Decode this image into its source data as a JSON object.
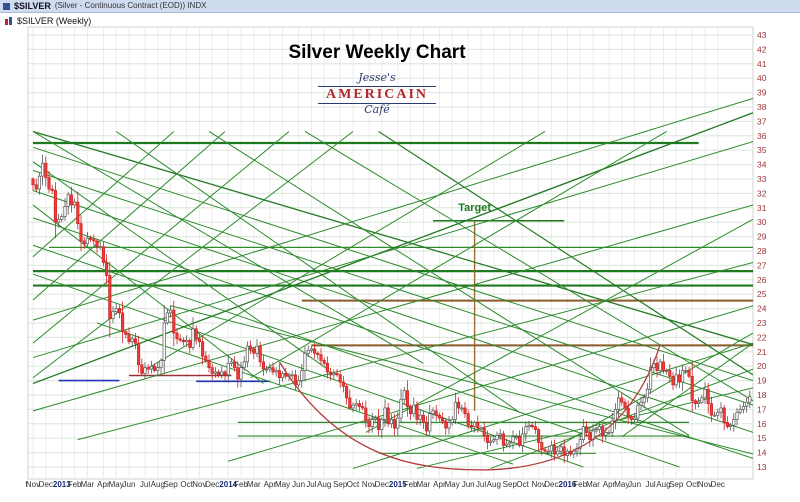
{
  "header": {
    "symbol": "$SILVER",
    "description": "(Silver - Continuous Contract (EOD)) INDX",
    "legend": "$SILVER (Weekly)"
  },
  "logo": {
    "line1": "Jesse's",
    "line2": "AMERICAIN",
    "line3": "Café"
  },
  "chart_data": {
    "type": "candlestick",
    "title": "Silver Weekly Chart",
    "symbol": "$SILVER",
    "timeframe": "Weekly",
    "y_axis_side": "right",
    "ylim": [
      13,
      43
    ],
    "y_tick_step": 1,
    "grid": true,
    "x_labels": [
      {
        "text": "t",
        "week": -2
      },
      {
        "text": "Nov",
        "week": 0
      },
      {
        "text": "Dec",
        "week": 4
      },
      {
        "text": "2013",
        "week": 9,
        "year": true
      },
      {
        "text": "Feb",
        "week": 13
      },
      {
        "text": "Mar",
        "week": 17
      },
      {
        "text": "Apr",
        "week": 22
      },
      {
        "text": "May",
        "week": 26
      },
      {
        "text": "Jun",
        "week": 30
      },
      {
        "text": "Jul",
        "week": 35
      },
      {
        "text": "Aug",
        "week": 39
      },
      {
        "text": "Sep",
        "week": 43
      },
      {
        "text": "Oct",
        "week": 48
      },
      {
        "text": "Nov",
        "week": 52
      },
      {
        "text": "Dec",
        "week": 56
      },
      {
        "text": "2014",
        "week": 61,
        "year": true
      },
      {
        "text": "Feb",
        "week": 65
      },
      {
        "text": "Mar",
        "week": 69
      },
      {
        "text": "Apr",
        "week": 74
      },
      {
        "text": "May",
        "week": 78
      },
      {
        "text": "Jun",
        "week": 83
      },
      {
        "text": "Jul",
        "week": 87
      },
      {
        "text": "Aug",
        "week": 91
      },
      {
        "text": "Sep",
        "week": 96
      },
      {
        "text": "Oct",
        "week": 100
      },
      {
        "text": "Nov",
        "week": 105
      },
      {
        "text": "Dec",
        "week": 109
      },
      {
        "text": "2015",
        "week": 114,
        "year": true
      },
      {
        "text": "Feb",
        "week": 118
      },
      {
        "text": "Mar",
        "week": 122
      },
      {
        "text": "Apr",
        "week": 127
      },
      {
        "text": "May",
        "week": 131
      },
      {
        "text": "Jun",
        "week": 136
      },
      {
        "text": "Jul",
        "week": 140
      },
      {
        "text": "Aug",
        "week": 144
      },
      {
        "text": "Sep",
        "week": 149
      },
      {
        "text": "Oct",
        "week": 153
      },
      {
        "text": "Nov",
        "week": 158
      },
      {
        "text": "Dec",
        "week": 162
      },
      {
        "text": "2016",
        "week": 167,
        "year": true
      },
      {
        "text": "Feb",
        "week": 171
      },
      {
        "text": "Mar",
        "week": 175
      },
      {
        "text": "Apr",
        "week": 180
      },
      {
        "text": "May",
        "week": 184
      },
      {
        "text": "Jun",
        "week": 188
      },
      {
        "text": "Jul",
        "week": 193
      },
      {
        "text": "Aug",
        "week": 197
      },
      {
        "text": "Sep",
        "week": 201
      },
      {
        "text": "Oct",
        "week": 206
      },
      {
        "text": "Nov",
        "week": 210
      },
      {
        "text": "Dec",
        "week": 214
      }
    ],
    "weekly_closes": [
      32.6,
      32.3,
      33.2,
      34.1,
      33.1,
      32.3,
      32.2,
      30.0,
      30.2,
      30.4,
      31.1,
      31.9,
      31.2,
      31.4,
      29.9,
      28.7,
      28.5,
      28.9,
      28.8,
      28.7,
      28.3,
      28.3,
      27.2,
      26.3,
      23.3,
      23.8,
      24.0,
      23.7,
      22.4,
      22.2,
      21.7,
      21.9,
      21.6,
      20.1,
      19.5,
      19.9,
      19.8,
      20.0,
      19.7,
      19.9,
      20.4,
      23.0,
      23.7,
      23.9,
      22.3,
      21.9,
      21.8,
      21.7,
      21.8,
      21.3,
      22.6,
      21.9,
      21.7,
      20.7,
      20.4,
      19.9,
      19.5,
      19.6,
      19.4,
      19.6,
      19.4,
      20.2,
      20.3,
      19.9,
      19.1,
      19.9,
      20.3,
      21.4,
      21.2,
      20.9,
      21.4,
      20.3,
      19.8,
      19.8,
      19.9,
      19.6,
      19.7,
      19.2,
      19.5,
      19.3,
      19.4,
      19.4,
      18.7,
      19.0,
      19.7,
      20.9,
      21.1,
      21.2,
      20.9,
      20.8,
      20.4,
      20.2,
      19.6,
      19.4,
      19.5,
      19.4,
      18.9,
      18.6,
      17.8,
      17.1,
      17.3,
      17.4,
      17.2,
      17.1,
      16.2,
      15.8,
      16.3,
      16.4,
      15.6,
      16.3,
      17.1,
      16.0,
      16.3,
      15.7,
      16.4,
      17.7,
      18.3,
      17.2,
      16.7,
      17.3,
      16.3,
      16.6,
      16.1,
      15.5,
      16.7,
      16.9,
      16.6,
      16.4,
      16.2,
      15.7,
      16.1,
      16.3,
      17.5,
      17.1,
      17.1,
      16.7,
      15.9,
      15.8,
      16.1,
      15.7,
      15.7,
      15.2,
      14.7,
      14.8,
      14.9,
      15.2,
      15.3,
      14.5,
      14.6,
      14.7,
      15.1,
      15.1,
      14.5,
      15.3,
      15.8,
      15.9,
      15.8,
      15.6,
      14.7,
      14.2,
      14.1,
      14.1,
      14.5,
      13.9,
      14.1,
      14.4,
      13.8,
      14.1,
      13.9,
      14.1,
      14.3,
      14.9,
      15.8,
      15.4,
      14.9,
      15.5,
      15.6,
      15.8,
      15.2,
      15.4,
      15.4,
      16.2,
      17.0,
      17.8,
      17.5,
      17.1,
      16.5,
      16.3,
      16.4,
      17.3,
      17.5,
      17.8,
      18.4,
      19.9,
      20.2,
      19.7,
      20.3,
      19.7,
      19.7,
      19.3,
      18.7,
      19.4,
      18.9,
      19.7,
      19.7,
      19.3,
      17.6,
      17.4,
      17.5,
      17.8,
      18.4,
      17.4,
      16.6,
      16.6,
      16.8,
      17.1,
      16.1,
      15.8,
      15.9,
      16.3,
      16.8,
      17.0,
      17.2,
      17.5,
      17.9
    ],
    "annotations": {
      "target": {
        "label": "Target",
        "week": 138,
        "price": 31.0
      },
      "vertical_line": {
        "week": 138,
        "price_top": 30.1,
        "price_bottom": 16.9,
        "c": "#9a6a32"
      },
      "cup": {
        "points": [
          [
            77,
            20.3
          ],
          [
            95,
            13.8
          ],
          [
            118,
            12.8
          ],
          [
            140,
            12.8
          ],
          [
            162,
            12.8
          ],
          [
            186,
            14.6
          ],
          [
            196,
            21.5
          ]
        ],
        "c": "#b23b3b"
      },
      "horizontal_lines": [
        {
          "p": 35.5,
          "w1": 0,
          "w2": 208,
          "c": "#1e7a1e",
          "lw": 2.2
        },
        {
          "p": 26.6,
          "w1": 0,
          "w2": 225,
          "c": "#1e7a1e",
          "lw": 2.2
        },
        {
          "p": 25.6,
          "w1": 0,
          "w2": 225,
          "c": "#1e7a1e",
          "lw": 2.2
        },
        {
          "p": 28.25,
          "w1": 5,
          "w2": 225,
          "c": "#2e8b2e",
          "lw": 1.2
        },
        {
          "p": 30.1,
          "w1": 125,
          "w2": 166,
          "c": "#1e7a1e",
          "lw": 1.5
        },
        {
          "p": 24.55,
          "w1": 84,
          "w2": 225,
          "c": "#8a5a2a",
          "lw": 2
        },
        {
          "p": 21.45,
          "w1": 87,
          "w2": 225,
          "c": "#8a5a2a",
          "lw": 2
        },
        {
          "p": 19.35,
          "w1": 30,
          "w2": 62,
          "c": "#993333",
          "lw": 1.5
        },
        {
          "p": 19.0,
          "w1": 8,
          "w2": 27,
          "c": "#2233bb",
          "lw": 1.6
        },
        {
          "p": 18.95,
          "w1": 51,
          "w2": 74,
          "c": "#2233bb",
          "lw": 1.6
        },
        {
          "p": 16.1,
          "w1": 64,
          "w2": 205,
          "c": "#2e8b2e",
          "lw": 1.2
        },
        {
          "p": 15.15,
          "w1": 64,
          "w2": 205,
          "c": "#2e8b2e",
          "lw": 1.2
        },
        {
          "p": 13.95,
          "w1": 108,
          "w2": 176,
          "c": "#2e8b2e",
          "lw": 1
        }
      ],
      "trend_lines": [
        [
          0,
          36.3,
          225,
          21.5,
          "#267a26",
          1.3
        ],
        [
          0,
          35.2,
          225,
          19.0
        ],
        [
          0,
          33.6,
          225,
          17.3
        ],
        [
          0,
          32.2,
          225,
          15.4
        ],
        [
          0,
          30.3,
          225,
          13.6
        ],
        [
          0,
          28.4,
          202,
          13.0
        ],
        [
          0,
          26.4,
          172,
          13.0
        ],
        [
          0,
          36.3,
          122,
          20.2
        ],
        [
          0,
          34.2,
          92,
          19.8
        ],
        [
          0,
          31.2,
          72,
          18.8
        ],
        [
          26,
          36.3,
          152,
          16.8
        ],
        [
          55,
          36.3,
          205,
          15.2
        ],
        [
          85,
          36.3,
          225,
          17.6
        ],
        [
          108,
          36.3,
          225,
          19.4,
          "#267a26",
          1.2
        ],
        [
          43,
          24.2,
          225,
          13.9
        ],
        [
          20,
          23.0,
          150,
          13.2
        ],
        [
          0,
          18.8,
          225,
          37.6,
          "#267a26",
          1.3
        ],
        [
          0,
          20.6,
          225,
          35.6
        ],
        [
          0,
          23.2,
          225,
          38.6
        ],
        [
          0,
          16.9,
          225,
          31.2
        ],
        [
          14,
          14.9,
          225,
          27.2
        ],
        [
          61,
          13.4,
          225,
          24.2
        ],
        [
          100,
          12.9,
          225,
          21.6
        ],
        [
          143,
          12.9,
          225,
          19.8
        ],
        [
          0,
          19.2,
          100,
          36.3
        ],
        [
          0,
          21.6,
          80,
          36.3
        ],
        [
          0,
          24.6,
          60,
          36.3
        ],
        [
          0,
          27.6,
          44,
          36.3
        ],
        [
          34,
          19.6,
          160,
          36.3
        ],
        [
          68,
          19.2,
          198,
          36.3
        ],
        [
          104,
          15.4,
          225,
          30.2
        ],
        [
          160,
          13.9,
          225,
          22.3
        ],
        [
          184,
          15.1,
          225,
          21.6
        ],
        [
          120,
          12.9,
          225,
          18.5
        ]
      ]
    },
    "colors": {
      "up_candle_fill": "#ffffff",
      "up_candle_stroke": "#555555",
      "down_candle_fill": "#ee3b3b",
      "down_candle_stroke": "#cc2222",
      "trend_default": "#2e8b2e",
      "grid_h": "#dbe6db",
      "grid_v": "#ececec",
      "y_label": "#993333",
      "x_label": "#333333",
      "x_year_label": "#1a2a7a",
      "target_green": "#1e7a1e"
    }
  }
}
